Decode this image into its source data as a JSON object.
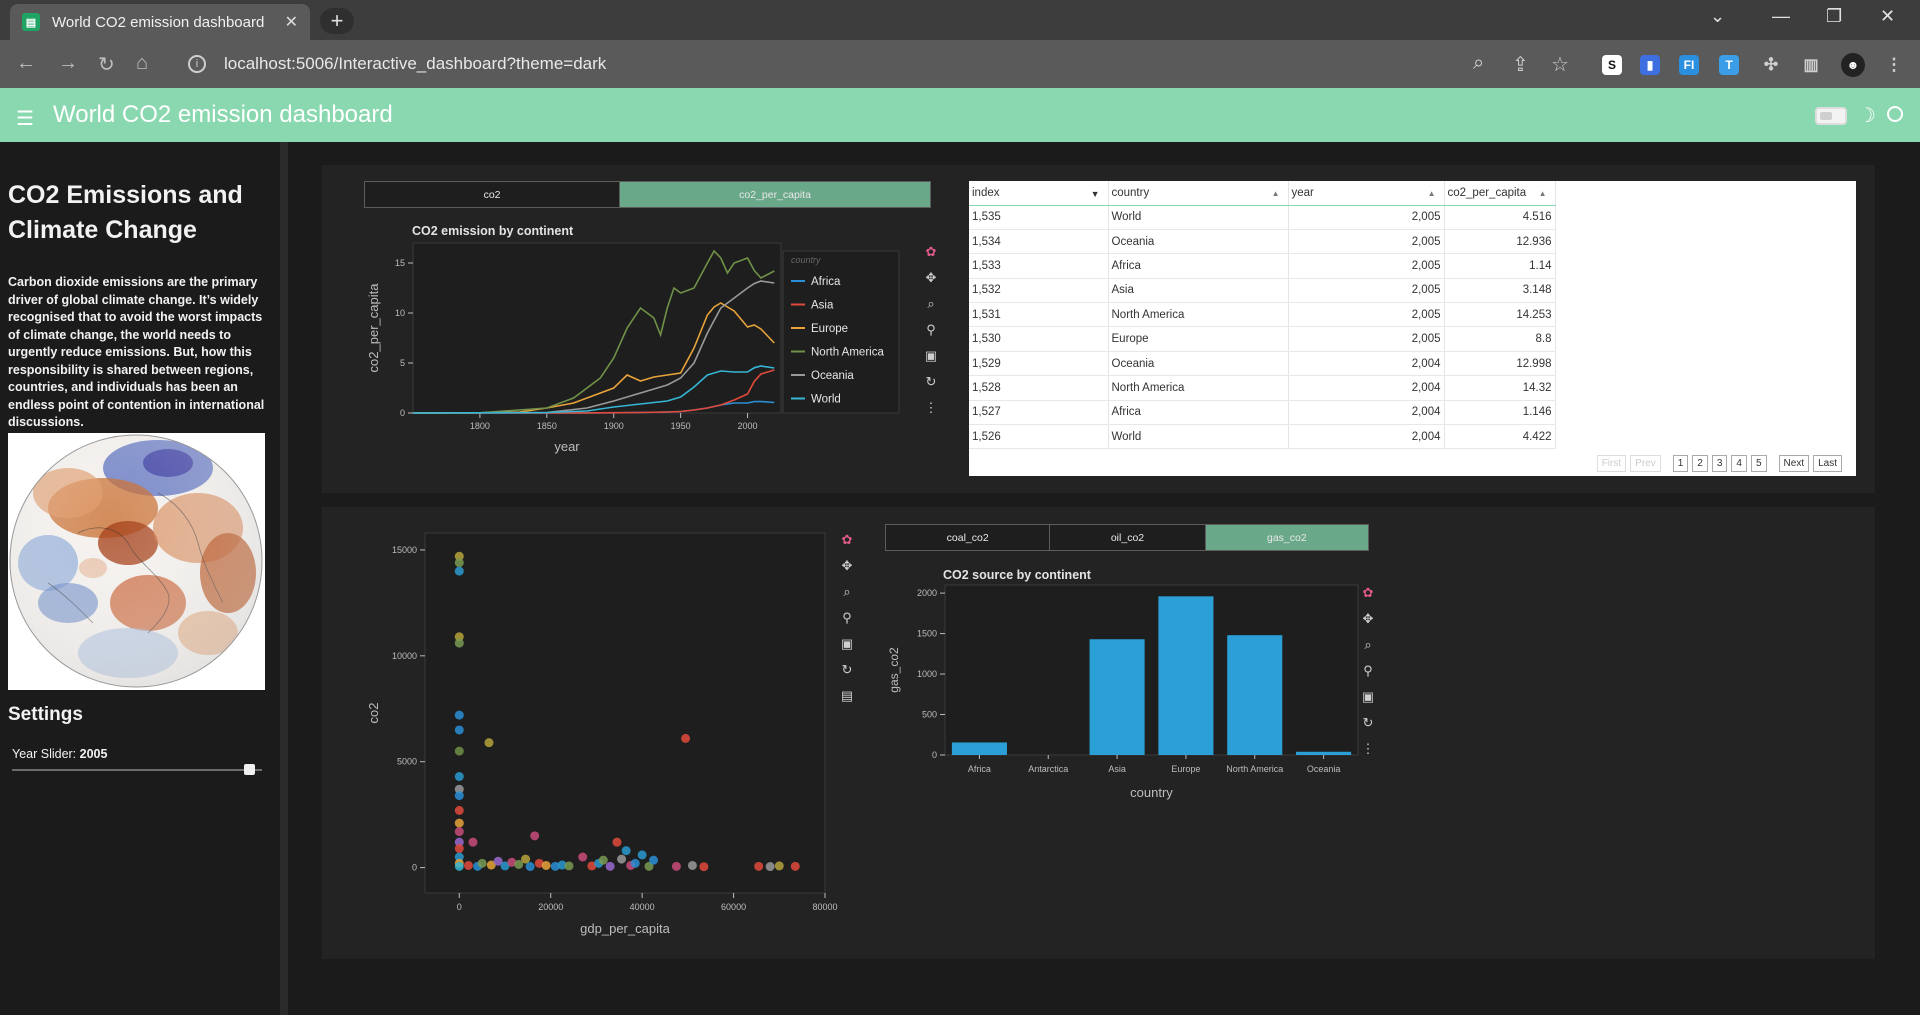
{
  "browser": {
    "tab_title": "World CO2 emission dashboard",
    "tab_close": "✕",
    "new_tab": "+",
    "url": "localhost:5006/Interactive_dashboard?theme=dark",
    "extensions": [
      "S",
      "FI"
    ]
  },
  "app": {
    "title": "World CO2 emission dashboard"
  },
  "sidebar": {
    "heading": "CO2 Emissions and Climate Change",
    "description": "Carbon dioxide emissions are the primary driver of global climate change. It’s widely recognised that to avoid the worst impacts of climate change, the world needs to urgently reduce emissions. But, how this responsibility is shared between regions, countries, and individuals has been an endless point of contention in international discussions.",
    "settings_title": "Settings",
    "slider_label": "Year Slider:",
    "slider_value": "2005"
  },
  "line_panel": {
    "tabs": [
      "co2",
      "co2_per_capita"
    ],
    "active_tab": "co2_per_capita",
    "chart_data": {
      "type": "line",
      "title": "CO2 emission by continent",
      "xlabel": "year",
      "ylabel": "co2_per_capita",
      "xlim": [
        1750,
        2025
      ],
      "ylim": [
        0,
        17
      ],
      "xticks": [
        1800,
        1850,
        1900,
        1950,
        2000
      ],
      "yticks": [
        0,
        5,
        10,
        15
      ],
      "legend_title": "country",
      "legend_placement": "right",
      "series": [
        {
          "name": "Africa",
          "color": "#2a8fd6",
          "x": [
            1750,
            1880,
            1900,
            1920,
            1940,
            1950,
            1960,
            1970,
            1980,
            1990,
            2000,
            2005,
            2010,
            2020
          ],
          "y": [
            0,
            0.01,
            0.02,
            0.05,
            0.1,
            0.15,
            0.3,
            0.5,
            0.8,
            1.0,
            1.0,
            1.14,
            1.15,
            1.05
          ]
        },
        {
          "name": "Asia",
          "color": "#e04a3c",
          "x": [
            1750,
            1880,
            1900,
            1920,
            1940,
            1950,
            1960,
            1970,
            1980,
            1990,
            2000,
            2005,
            2010,
            2020
          ],
          "y": [
            0,
            0.01,
            0.03,
            0.05,
            0.1,
            0.15,
            0.3,
            0.5,
            0.8,
            1.3,
            1.9,
            3.15,
            3.9,
            4.3
          ]
        },
        {
          "name": "Europe",
          "color": "#e7a33a",
          "x": [
            1750,
            1800,
            1830,
            1850,
            1870,
            1900,
            1910,
            1920,
            1930,
            1940,
            1950,
            1960,
            1970,
            1975,
            1980,
            1990,
            2000,
            2005,
            2010,
            2020
          ],
          "y": [
            0,
            0.02,
            0.1,
            0.5,
            1.0,
            2.5,
            3.8,
            3.2,
            3.6,
            3.8,
            4.0,
            6.5,
            9.8,
            10.6,
            11.0,
            10.2,
            8.6,
            8.8,
            8.4,
            7.0
          ]
        },
        {
          "name": "North America",
          "color": "#6f9148",
          "x": [
            1750,
            1800,
            1850,
            1870,
            1890,
            1900,
            1910,
            1920,
            1930,
            1935,
            1940,
            1945,
            1950,
            1960,
            1970,
            1975,
            1980,
            1985,
            1990,
            2000,
            2005,
            2010,
            2020
          ],
          "y": [
            0,
            0.02,
            0.5,
            1.5,
            3.5,
            5.5,
            8.5,
            10.5,
            9.5,
            7.8,
            10.5,
            12.5,
            12.0,
            12.5,
            15.0,
            16.2,
            15.5,
            14.0,
            15.0,
            15.5,
            14.25,
            13.5,
            14.2
          ]
        },
        {
          "name": "Oceania",
          "color": "#9a9a9a",
          "x": [
            1750,
            1850,
            1880,
            1900,
            1920,
            1940,
            1950,
            1960,
            1970,
            1980,
            1990,
            2000,
            2005,
            2010,
            2020
          ],
          "y": [
            0,
            0.05,
            0.5,
            1.2,
            2.0,
            2.8,
            3.5,
            5.0,
            8.0,
            10.5,
            11.5,
            12.5,
            12.94,
            13.2,
            13.0
          ]
        },
        {
          "name": "World",
          "color": "#35b6d4",
          "x": [
            1750,
            1850,
            1880,
            1900,
            1920,
            1940,
            1950,
            1960,
            1970,
            1980,
            1990,
            2000,
            2005,
            2010,
            2020
          ],
          "y": [
            0,
            0.05,
            0.2,
            0.6,
            0.9,
            1.2,
            1.6,
            2.6,
            3.8,
            4.2,
            4.1,
            4.1,
            4.52,
            4.7,
            4.5
          ]
        }
      ]
    }
  },
  "table": {
    "columns": [
      "index",
      "country",
      "year",
      "co2_per_capita"
    ],
    "rows": [
      [
        "1,535",
        "World",
        "2,005",
        "4.516"
      ],
      [
        "1,534",
        "Oceania",
        "2,005",
        "12.936"
      ],
      [
        "1,533",
        "Africa",
        "2,005",
        "1.14"
      ],
      [
        "1,532",
        "Asia",
        "2,005",
        "3.148"
      ],
      [
        "1,531",
        "North America",
        "2,005",
        "14.253"
      ],
      [
        "1,530",
        "Europe",
        "2,005",
        "8.8"
      ],
      [
        "1,529",
        "Oceania",
        "2,004",
        "12.998"
      ],
      [
        "1,528",
        "North America",
        "2,004",
        "14.32"
      ],
      [
        "1,527",
        "Africa",
        "2,004",
        "1.146"
      ],
      [
        "1,526",
        "World",
        "2,004",
        "4.422"
      ]
    ],
    "pager": {
      "first": "First",
      "prev": "Prev",
      "pages": [
        "1",
        "2",
        "3",
        "4",
        "5"
      ],
      "next": "Next",
      "last": "Last"
    }
  },
  "scatter_panel": {
    "chart_data": {
      "type": "scatter",
      "xlabel": "gdp_per_capita",
      "ylabel": "co2",
      "xlim": [
        -7500,
        80000
      ],
      "ylim": [
        -1200,
        15800
      ],
      "xticks": [
        0,
        20000,
        40000,
        60000,
        80000
      ],
      "yticks": [
        0,
        5000,
        10000,
        15000
      ],
      "points": [
        {
          "x": 0,
          "y": 14700,
          "c": "#b5a33c"
        },
        {
          "x": 0,
          "y": 14400,
          "c": "#7a9a52"
        },
        {
          "x": 0,
          "y": 14000,
          "c": "#2a9ad0"
        },
        {
          "x": 0,
          "y": 10900,
          "c": "#b5a33c"
        },
        {
          "x": 0,
          "y": 10600,
          "c": "#7a9a52"
        },
        {
          "x": 0,
          "y": 7200,
          "c": "#2a8fd6"
        },
        {
          "x": 0,
          "y": 6500,
          "c": "#2a8fd6"
        },
        {
          "x": 0,
          "y": 5500,
          "c": "#6f9148"
        },
        {
          "x": 0,
          "y": 4300,
          "c": "#2a9ad0"
        },
        {
          "x": 0,
          "y": 3700,
          "c": "#9a9a9a"
        },
        {
          "x": 0,
          "y": 3400,
          "c": "#2a8fd6"
        },
        {
          "x": 0,
          "y": 2700,
          "c": "#e04a3c"
        },
        {
          "x": 0,
          "y": 2100,
          "c": "#e7a33a"
        },
        {
          "x": 0,
          "y": 1700,
          "c": "#c94c7a"
        },
        {
          "x": 0,
          "y": 1200,
          "c": "#9a6ad0"
        },
        {
          "x": 0,
          "y": 900,
          "c": "#e04a3c"
        },
        {
          "x": 0,
          "y": 500,
          "c": "#2a9ad0"
        },
        {
          "x": 0,
          "y": 200,
          "c": "#e7a33a"
        },
        {
          "x": 0,
          "y": 60,
          "c": "#35b6d4"
        },
        {
          "x": 3000,
          "y": 1200,
          "c": "#c94c7a"
        },
        {
          "x": 6500,
          "y": 5900,
          "c": "#b5a33c"
        },
        {
          "x": 2000,
          "y": 100,
          "c": "#e04a3c"
        },
        {
          "x": 4000,
          "y": 60,
          "c": "#2a8fd6"
        },
        {
          "x": 5000,
          "y": 200,
          "c": "#7a9a52"
        },
        {
          "x": 7000,
          "y": 120,
          "c": "#e7a33a"
        },
        {
          "x": 8500,
          "y": 300,
          "c": "#9a6ad0"
        },
        {
          "x": 10000,
          "y": 80,
          "c": "#2a9ad0"
        },
        {
          "x": 11500,
          "y": 250,
          "c": "#c94c7a"
        },
        {
          "x": 13000,
          "y": 150,
          "c": "#7a9a52"
        },
        {
          "x": 14500,
          "y": 400,
          "c": "#b5a33c"
        },
        {
          "x": 15500,
          "y": 50,
          "c": "#2a8fd6"
        },
        {
          "x": 16500,
          "y": 1500,
          "c": "#c94c7a"
        },
        {
          "x": 17500,
          "y": 200,
          "c": "#e04a3c"
        },
        {
          "x": 19000,
          "y": 100,
          "c": "#e7a33a"
        },
        {
          "x": 21000,
          "y": 60,
          "c": "#2a8fd6"
        },
        {
          "x": 22500,
          "y": 120,
          "c": "#2a9ad0"
        },
        {
          "x": 24000,
          "y": 80,
          "c": "#7a9a52"
        },
        {
          "x": 27000,
          "y": 500,
          "c": "#c94c7a"
        },
        {
          "x": 29000,
          "y": 80,
          "c": "#e04a3c"
        },
        {
          "x": 30500,
          "y": 200,
          "c": "#2a9ad0"
        },
        {
          "x": 31500,
          "y": 350,
          "c": "#7a9a52"
        },
        {
          "x": 33000,
          "y": 60,
          "c": "#9a6ad0"
        },
        {
          "x": 34500,
          "y": 1200,
          "c": "#e04a3c"
        },
        {
          "x": 35500,
          "y": 400,
          "c": "#9a9a9a"
        },
        {
          "x": 36500,
          "y": 800,
          "c": "#2a9ad0"
        },
        {
          "x": 37500,
          "y": 100,
          "c": "#c94c7a"
        },
        {
          "x": 38500,
          "y": 200,
          "c": "#2a8fd6"
        },
        {
          "x": 40000,
          "y": 600,
          "c": "#2a9ad0"
        },
        {
          "x": 41500,
          "y": 60,
          "c": "#7a9a52"
        },
        {
          "x": 42500,
          "y": 350,
          "c": "#2a8fd6"
        },
        {
          "x": 47500,
          "y": 60,
          "c": "#c94c7a"
        },
        {
          "x": 49500,
          "y": 6100,
          "c": "#e04a3c"
        },
        {
          "x": 51000,
          "y": 100,
          "c": "#9a9a9a"
        },
        {
          "x": 53500,
          "y": 40,
          "c": "#e04a3c"
        },
        {
          "x": 65500,
          "y": 60,
          "c": "#e04a3c"
        },
        {
          "x": 68000,
          "y": 50,
          "c": "#9a9a9a"
        },
        {
          "x": 70000,
          "y": 80,
          "c": "#b5a33c"
        },
        {
          "x": 73500,
          "y": 60,
          "c": "#e04a3c"
        }
      ]
    }
  },
  "bar_panel": {
    "tabs": [
      "coal_co2",
      "oil_co2",
      "gas_co2"
    ],
    "active_tab": "gas_co2",
    "chart_data": {
      "type": "bar",
      "title": "CO2 source by continent",
      "xlabel": "country",
      "ylabel": "gas_co2",
      "categories": [
        "Africa",
        "Antarctica",
        "Asia",
        "Europe",
        "North America",
        "Oceania"
      ],
      "values": [
        155,
        0,
        1430,
        1960,
        1480,
        40
      ],
      "ylim": [
        0,
        2100
      ],
      "yticks": [
        0,
        500,
        1000,
        1500,
        2000
      ],
      "color": "#2aa0d6"
    }
  },
  "colors": {
    "accent": "#8ad8b0",
    "active_radio": "#6aa88a",
    "plot_bg": "#1e1e1e",
    "card_bg": "#232323"
  }
}
